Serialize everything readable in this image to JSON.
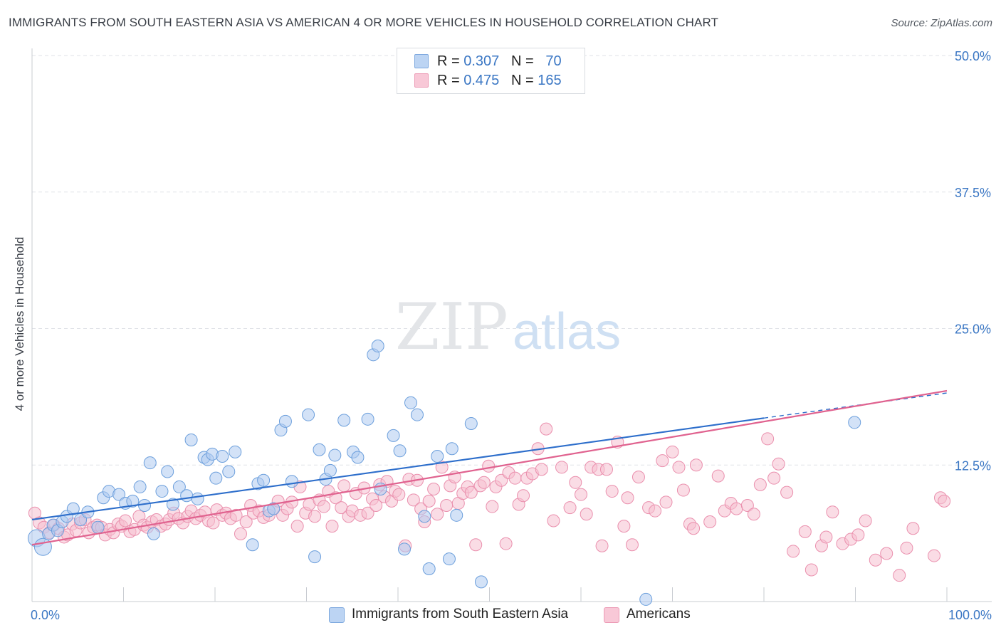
{
  "title": "IMMIGRANTS FROM SOUTH EASTERN ASIA VS AMERICAN 4 OR MORE VEHICLES IN HOUSEHOLD CORRELATION CHART",
  "source": "Source: ZipAtlas.com",
  "watermark": {
    "zip": "ZIP",
    "atlas": "atlas"
  },
  "legend_top": {
    "rows": [
      {
        "r_label": "R = ",
        "r_value": "0.307",
        "n_label": "N = ",
        "n_value": "70"
      },
      {
        "r_label": "R = ",
        "r_value": "0.475",
        "n_label": "N = ",
        "n_value": "165"
      }
    ]
  },
  "colors": {
    "blue_fill": "#aecbf0",
    "blue_stroke": "#6c9fdc",
    "blue_line": "#2d6ecb",
    "pink_fill": "#f6bfd0",
    "pink_stroke": "#ea8fad",
    "pink_line": "#e0628f",
    "grid": "#dfe2e7",
    "tick_label": "#3b77c4"
  },
  "chart_data": {
    "type": "scatter",
    "title": "IMMIGRANTS FROM SOUTH EASTERN ASIA VS AMERICAN 4 OR MORE VEHICLES IN HOUSEHOLD CORRELATION CHART",
    "xlabel": "",
    "ylabel": "4 or more Vehicles in Household",
    "xlim": [
      0,
      100
    ],
    "ylim": [
      0,
      50
    ],
    "x_tick_labels": [
      "0.0%",
      "100.0%"
    ],
    "y_ticks": [
      12.5,
      25.0,
      37.5,
      50.0
    ],
    "y_tick_labels": [
      "12.5%",
      "25.0%",
      "37.5%",
      "50.0%"
    ],
    "grid": true,
    "legend_position": "bottom",
    "series": [
      {
        "name": "Immigrants from South Eastern Asia",
        "r": 0.307,
        "n": 70,
        "trend": {
          "x": [
            0,
            80
          ],
          "y": [
            7.5,
            16.8
          ],
          "dashed_extension_to": [
            100,
            19.1
          ]
        },
        "points": [
          [
            0.5,
            5.8
          ],
          [
            1.2,
            5.0
          ],
          [
            1.8,
            6.2
          ],
          [
            2.3,
            7.0
          ],
          [
            2.8,
            6.5
          ],
          [
            3.3,
            7.3
          ],
          [
            3.8,
            7.8
          ],
          [
            4.5,
            8.5
          ],
          [
            5.3,
            7.5
          ],
          [
            6.1,
            8.2
          ],
          [
            7.2,
            6.8
          ],
          [
            7.8,
            9.5
          ],
          [
            8.4,
            10.1
          ],
          [
            9.5,
            9.8
          ],
          [
            10.2,
            9.0
          ],
          [
            11.0,
            9.2
          ],
          [
            11.8,
            10.5
          ],
          [
            12.3,
            8.8
          ],
          [
            12.9,
            12.7
          ],
          [
            13.3,
            6.2
          ],
          [
            14.2,
            10.1
          ],
          [
            14.8,
            11.9
          ],
          [
            15.4,
            8.9
          ],
          [
            16.1,
            10.5
          ],
          [
            16.9,
            9.7
          ],
          [
            17.4,
            14.8
          ],
          [
            18.1,
            9.4
          ],
          [
            18.8,
            13.2
          ],
          [
            19.2,
            13.0
          ],
          [
            19.7,
            13.5
          ],
          [
            20.1,
            11.3
          ],
          [
            20.8,
            13.3
          ],
          [
            21.5,
            11.9
          ],
          [
            22.2,
            13.7
          ],
          [
            24.1,
            5.2
          ],
          [
            24.7,
            10.8
          ],
          [
            25.3,
            11.1
          ],
          [
            25.9,
            8.3
          ],
          [
            26.4,
            8.5
          ],
          [
            27.2,
            15.7
          ],
          [
            27.7,
            16.5
          ],
          [
            28.4,
            11.0
          ],
          [
            30.2,
            17.1
          ],
          [
            30.9,
            4.1
          ],
          [
            31.4,
            13.9
          ],
          [
            32.1,
            11.2
          ],
          [
            32.6,
            12.0
          ],
          [
            33.1,
            13.4
          ],
          [
            34.1,
            16.6
          ],
          [
            35.1,
            13.7
          ],
          [
            35.6,
            13.2
          ],
          [
            36.7,
            16.7
          ],
          [
            37.3,
            22.6
          ],
          [
            37.8,
            23.4
          ],
          [
            38.1,
            10.3
          ],
          [
            39.5,
            15.2
          ],
          [
            40.2,
            13.8
          ],
          [
            40.7,
            4.8
          ],
          [
            41.4,
            18.2
          ],
          [
            42.1,
            17.1
          ],
          [
            42.9,
            7.8
          ],
          [
            43.4,
            3.0
          ],
          [
            44.3,
            13.3
          ],
          [
            45.6,
            3.9
          ],
          [
            45.9,
            14.0
          ],
          [
            46.4,
            7.9
          ],
          [
            48.0,
            16.3
          ],
          [
            49.1,
            1.8
          ],
          [
            67.1,
            0.2
          ],
          [
            89.9,
            16.4
          ]
        ]
      },
      {
        "name": "Americans",
        "r": 0.475,
        "n": 165,
        "trend": {
          "x": [
            0,
            100
          ],
          "y": [
            5.2,
            19.3
          ]
        },
        "points": [
          [
            0.3,
            8.1
          ],
          [
            0.8,
            7.2
          ],
          [
            1.3,
            6.8
          ],
          [
            1.9,
            6.3
          ],
          [
            2.4,
            7.0
          ],
          [
            2.9,
            6.7
          ],
          [
            3.5,
            5.9
          ],
          [
            3.9,
            6.1
          ],
          [
            4.4,
            7.1
          ],
          [
            4.8,
            6.5
          ],
          [
            5.3,
            7.2
          ],
          [
            5.8,
            7.5
          ],
          [
            6.2,
            6.3
          ],
          [
            6.7,
            6.8
          ],
          [
            7.1,
            7.0
          ],
          [
            7.6,
            6.8
          ],
          [
            8.0,
            6.1
          ],
          [
            8.5,
            6.6
          ],
          [
            8.9,
            6.3
          ],
          [
            9.4,
            7.1
          ],
          [
            9.8,
            6.9
          ],
          [
            10.2,
            7.4
          ],
          [
            10.7,
            6.4
          ],
          [
            11.2,
            6.6
          ],
          [
            11.7,
            7.8
          ],
          [
            12.2,
            7.0
          ],
          [
            12.6,
            6.8
          ],
          [
            13.1,
            7.3
          ],
          [
            13.6,
            7.5
          ],
          [
            14.1,
            6.9
          ],
          [
            14.6,
            7.1
          ],
          [
            15.0,
            7.5
          ],
          [
            15.5,
            8.1
          ],
          [
            16.0,
            7.6
          ],
          [
            16.5,
            7.2
          ],
          [
            17.0,
            7.8
          ],
          [
            17.4,
            8.3
          ],
          [
            17.9,
            7.6
          ],
          [
            18.4,
            7.9
          ],
          [
            18.9,
            8.2
          ],
          [
            19.3,
            7.4
          ],
          [
            19.8,
            7.2
          ],
          [
            20.2,
            8.4
          ],
          [
            20.8,
            7.9
          ],
          [
            21.2,
            8.1
          ],
          [
            21.7,
            7.6
          ],
          [
            22.3,
            7.9
          ],
          [
            22.8,
            6.2
          ],
          [
            23.4,
            7.3
          ],
          [
            23.9,
            8.8
          ],
          [
            24.2,
            8.1
          ],
          [
            24.8,
            8.3
          ],
          [
            25.3,
            7.7
          ],
          [
            25.9,
            7.9
          ],
          [
            26.4,
            8.5
          ],
          [
            26.9,
            9.2
          ],
          [
            27.4,
            7.9
          ],
          [
            27.9,
            8.5
          ],
          [
            28.4,
            9.1
          ],
          [
            29.0,
            6.9
          ],
          [
            29.3,
            10.5
          ],
          [
            29.9,
            8.1
          ],
          [
            30.3,
            8.9
          ],
          [
            30.9,
            7.8
          ],
          [
            31.4,
            9.3
          ],
          [
            31.9,
            8.7
          ],
          [
            32.4,
            10.1
          ],
          [
            32.8,
            6.9
          ],
          [
            33.2,
            9.5
          ],
          [
            33.8,
            8.6
          ],
          [
            34.1,
            10.6
          ],
          [
            34.6,
            7.8
          ],
          [
            35.0,
            8.3
          ],
          [
            35.4,
            9.9
          ],
          [
            35.9,
            7.9
          ],
          [
            36.3,
            10.4
          ],
          [
            36.7,
            8.1
          ],
          [
            37.2,
            9.4
          ],
          [
            37.6,
            8.8
          ],
          [
            38.0,
            10.7
          ],
          [
            38.5,
            9.6
          ],
          [
            38.8,
            11.0
          ],
          [
            39.3,
            9.2
          ],
          [
            39.7,
            10.1
          ],
          [
            40.1,
            9.8
          ],
          [
            40.8,
            5.1
          ],
          [
            41.2,
            11.2
          ],
          [
            41.7,
            9.3
          ],
          [
            42.1,
            11.1
          ],
          [
            42.5,
            8.5
          ],
          [
            42.9,
            7.3
          ],
          [
            43.4,
            9.2
          ],
          [
            43.9,
            10.3
          ],
          [
            44.3,
            8.0
          ],
          [
            44.8,
            12.3
          ],
          [
            45.3,
            8.8
          ],
          [
            45.7,
            10.6
          ],
          [
            46.2,
            11.4
          ],
          [
            46.6,
            9.0
          ],
          [
            47.1,
            9.9
          ],
          [
            47.6,
            10.5
          ],
          [
            48.0,
            10.0
          ],
          [
            48.5,
            5.2
          ],
          [
            49.0,
            10.6
          ],
          [
            49.4,
            10.9
          ],
          [
            49.9,
            12.4
          ],
          [
            50.3,
            8.7
          ],
          [
            50.7,
            10.5
          ],
          [
            51.3,
            11.1
          ],
          [
            51.8,
            5.3
          ],
          [
            52.1,
            11.8
          ],
          [
            52.8,
            11.3
          ],
          [
            53.2,
            8.9
          ],
          [
            53.7,
            9.7
          ],
          [
            54.1,
            11.3
          ],
          [
            54.7,
            11.7
          ],
          [
            55.3,
            14.0
          ],
          [
            55.7,
            12.1
          ],
          [
            56.2,
            15.8
          ],
          [
            57.0,
            7.4
          ],
          [
            57.9,
            12.3
          ],
          [
            58.8,
            8.6
          ],
          [
            59.4,
            10.9
          ],
          [
            60.0,
            9.8
          ],
          [
            60.6,
            8.0
          ],
          [
            61.1,
            12.3
          ],
          [
            61.9,
            12.1
          ],
          [
            62.3,
            5.1
          ],
          [
            62.8,
            12.1
          ],
          [
            63.4,
            10.1
          ],
          [
            64.0,
            14.6
          ],
          [
            64.7,
            6.9
          ],
          [
            65.1,
            9.5
          ],
          [
            65.6,
            5.2
          ],
          [
            66.3,
            11.4
          ],
          [
            67.4,
            8.6
          ],
          [
            68.1,
            8.3
          ],
          [
            68.9,
            12.9
          ],
          [
            69.3,
            9.1
          ],
          [
            70.0,
            13.7
          ],
          [
            70.7,
            12.3
          ],
          [
            71.2,
            10.2
          ],
          [
            71.9,
            7.1
          ],
          [
            72.3,
            6.7
          ],
          [
            72.6,
            12.5
          ],
          [
            74.1,
            7.3
          ],
          [
            75.0,
            11.5
          ],
          [
            75.7,
            8.3
          ],
          [
            76.4,
            9.0
          ],
          [
            77.0,
            8.5
          ],
          [
            78.2,
            8.8
          ],
          [
            78.9,
            8.0
          ],
          [
            79.6,
            10.7
          ],
          [
            80.4,
            14.9
          ],
          [
            81.1,
            11.3
          ],
          [
            81.6,
            12.6
          ],
          [
            82.5,
            10.0
          ],
          [
            83.2,
            4.6
          ],
          [
            84.5,
            6.4
          ],
          [
            85.2,
            2.9
          ],
          [
            86.3,
            5.1
          ],
          [
            86.8,
            5.9
          ],
          [
            87.5,
            8.2
          ],
          [
            88.6,
            5.3
          ],
          [
            89.5,
            5.7
          ],
          [
            90.3,
            6.1
          ],
          [
            91.1,
            7.4
          ],
          [
            92.2,
            3.8
          ],
          [
            93.4,
            4.4
          ],
          [
            94.8,
            2.4
          ],
          [
            95.6,
            4.9
          ],
          [
            96.3,
            6.7
          ],
          [
            98.6,
            4.2
          ],
          [
            99.3,
            9.5
          ],
          [
            99.7,
            9.2
          ]
        ]
      }
    ]
  }
}
